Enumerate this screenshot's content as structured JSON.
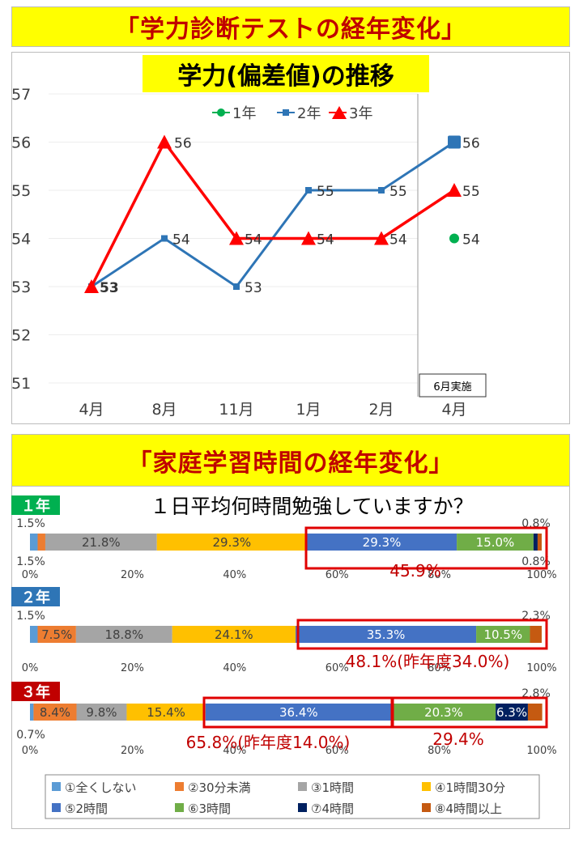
{
  "header": {
    "title": "「学力診断テストの経年変化」"
  },
  "section2": {
    "title": "「家庭学習時間の経年変化」"
  },
  "chart_data": [
    {
      "type": "line",
      "title": "学力(偏差値)の推移",
      "categories": [
        "4月",
        "8月",
        "11月",
        "1月",
        "2月",
        "4月"
      ],
      "ylim": [
        51,
        57
      ],
      "yticks": [
        51,
        52,
        53,
        54,
        55,
        56,
        57
      ],
      "legend_position": "top-center",
      "annotation": "6月実施",
      "series": [
        {
          "name": "1年",
          "color": "#00b050",
          "values": [
            null,
            null,
            null,
            null,
            null,
            54
          ],
          "labels": [
            "",
            "",
            "",
            "",
            "",
            "54"
          ]
        },
        {
          "name": "2年",
          "color": "#2e75b6",
          "values": [
            53,
            54,
            53,
            55,
            55,
            56
          ],
          "labels": [
            "53",
            "54",
            "53",
            "55",
            "55",
            "56"
          ]
        },
        {
          "name": "3年",
          "color": "#ff0000",
          "values": [
            53,
            56,
            54,
            54,
            54,
            55
          ],
          "labels": [
            "53",
            "56",
            "54",
            "54",
            "54",
            "55"
          ]
        }
      ]
    },
    {
      "type": "bar",
      "stacked": true,
      "orientation": "horizontal",
      "title": "１日平均何時間勉強していますか？",
      "xlim": [
        0,
        100
      ],
      "xticks": [
        "0%",
        "20%",
        "40%",
        "60%",
        "80%",
        "100%"
      ],
      "legend_position": "bottom",
      "categories_legend": [
        "①全くしない",
        "②30分未満",
        "③1時間",
        "④1時間30分",
        "⑤2時間",
        "⑥3時間",
        "⑦4時間",
        "⑧4時間以上"
      ],
      "colors": [
        "#5b9bd5",
        "#ed7d31",
        "#a5a5a5",
        "#ffc000",
        "#4472c4",
        "#70ad47",
        "#002060",
        "#c55a11"
      ],
      "rows": [
        {
          "name": "１年",
          "name_color": "#00b050",
          "values": [
            1.5,
            1.5,
            21.8,
            29.3,
            29.3,
            15.0,
            0.8,
            0.8
          ],
          "labels": [
            "1.5%",
            "1.5%",
            "21.8%",
            "29.3%",
            "29.3%",
            "15.0%",
            "0.8%",
            "0.8%"
          ],
          "highlights": [
            {
              "text": "45.9%"
            }
          ]
        },
        {
          "name": "２年",
          "name_color": "#2e75b6",
          "values": [
            1.5,
            7.5,
            18.8,
            24.1,
            35.3,
            10.5,
            0,
            2.3
          ],
          "labels": [
            "1.5%",
            "7.5%",
            "18.8%",
            "24.1%",
            "35.3%",
            "10.5%",
            "",
            "2.3%"
          ],
          "highlights": [
            {
              "text": "48.1%(昨年度34.0%)"
            }
          ]
        },
        {
          "name": "３年",
          "name_color": "#c00000",
          "values": [
            0.7,
            8.4,
            9.8,
            15.4,
            36.4,
            20.3,
            6.3,
            2.8
          ],
          "labels": [
            "0.7%",
            "8.4%",
            "9.8%",
            "15.4%",
            "36.4%",
            "20.3%",
            "6.3%",
            "2.8%"
          ],
          "highlights": [
            {
              "text": "65.8%(昨年度14.0%)"
            },
            {
              "text": "29.4%"
            }
          ]
        }
      ]
    }
  ]
}
